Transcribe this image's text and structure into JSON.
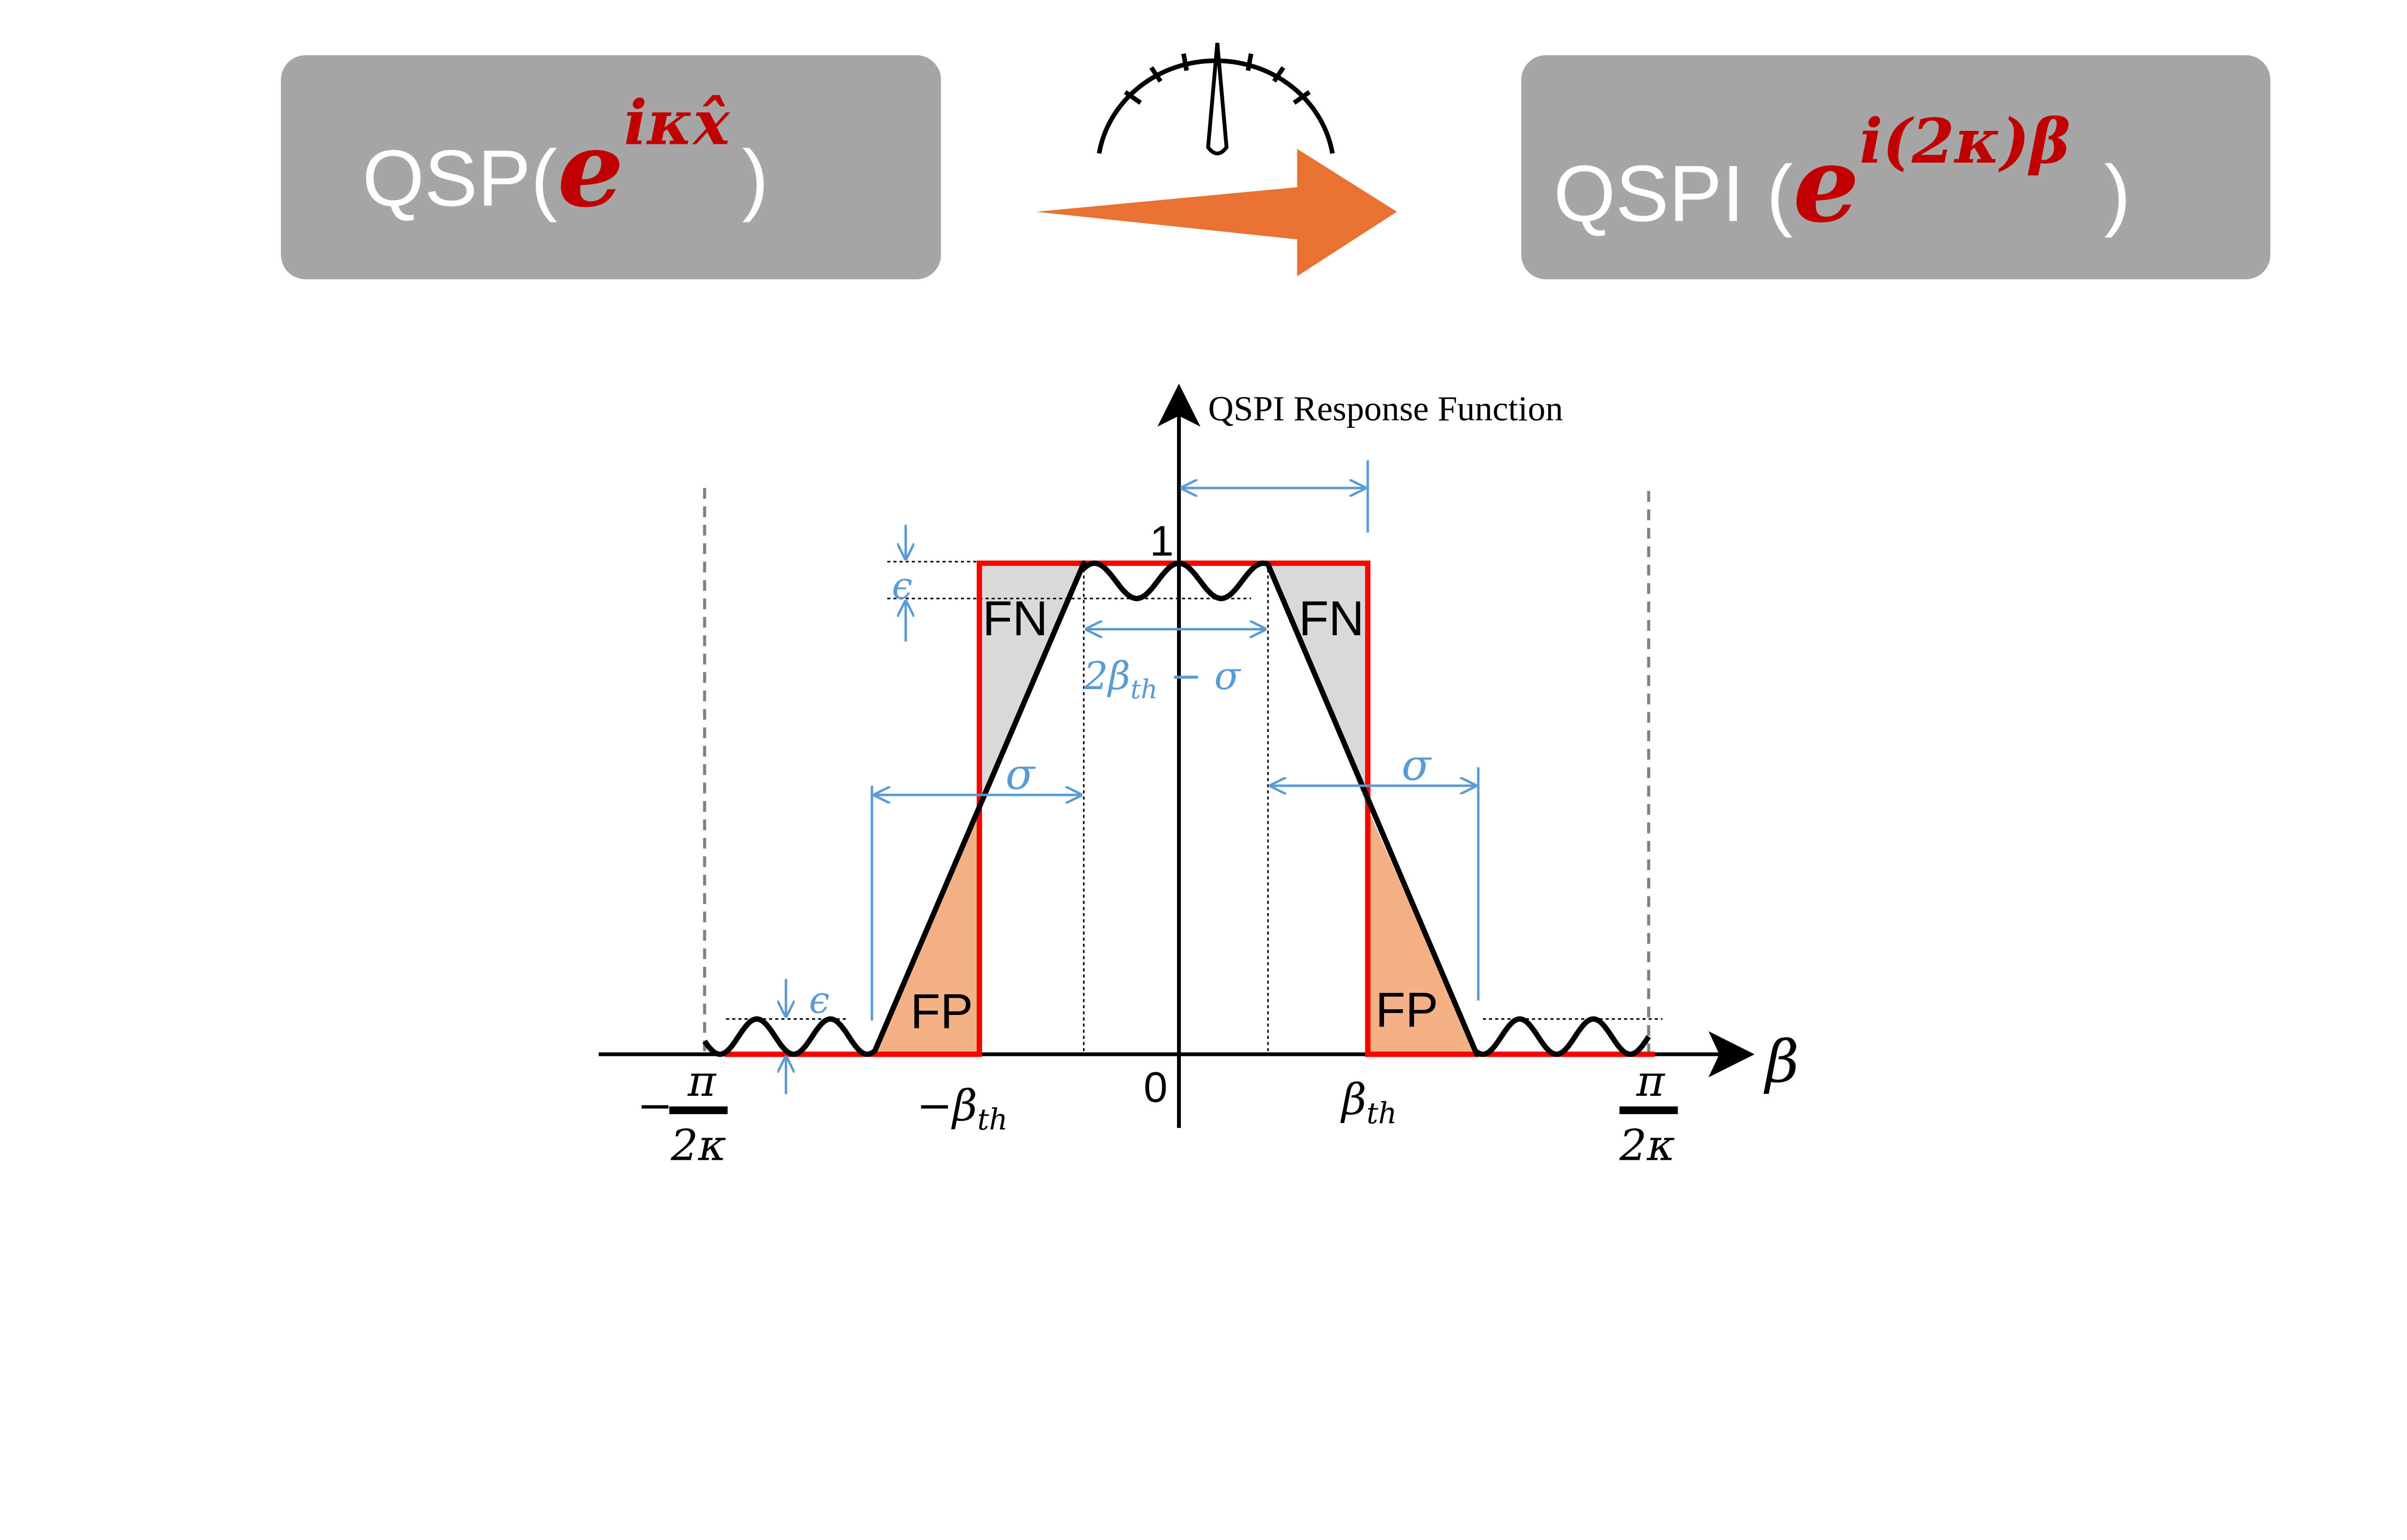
{
  "top": {
    "left_box": {
      "prefix": "QSP(",
      "base": "e",
      "exponent": "iκx̂",
      "suffix": ")"
    },
    "right_box": {
      "prefix": "QSPI (",
      "base": "e",
      "exponent": "i(2κ)β",
      "suffix": ")"
    },
    "gauge_icon": "speedometer-icon",
    "arrow_color": "#e97132",
    "box_color": "#a6a6a6",
    "exponent_color": "#c00000"
  },
  "plot": {
    "y_axis_title": "QSPI Response Function",
    "x_axis_label": "β",
    "y_tick_one": "1",
    "x_tick_zero": "0",
    "neg_beta_th": {
      "sign": "−",
      "sym": "β",
      "sub": "th"
    },
    "pos_beta_th": {
      "sym": "β",
      "sub": "th"
    },
    "neg_pi_label": {
      "sign": "−",
      "num": "π",
      "den": "2κ"
    },
    "pos_pi_label": {
      "num": "π",
      "den": "2κ"
    },
    "fn_label": "FN",
    "fp_label": "FP",
    "epsilon": "ϵ",
    "sigma": "σ",
    "width_label": {
      "pre": "2",
      "sym": "β",
      "sub": "th",
      "post": " − σ"
    },
    "colors": {
      "ideal": "#ff0000",
      "annotation": "#5b9bd5",
      "fn_fill": "#d9d9d9",
      "fp_fill": "#f4b183",
      "curve": "#000000"
    }
  }
}
